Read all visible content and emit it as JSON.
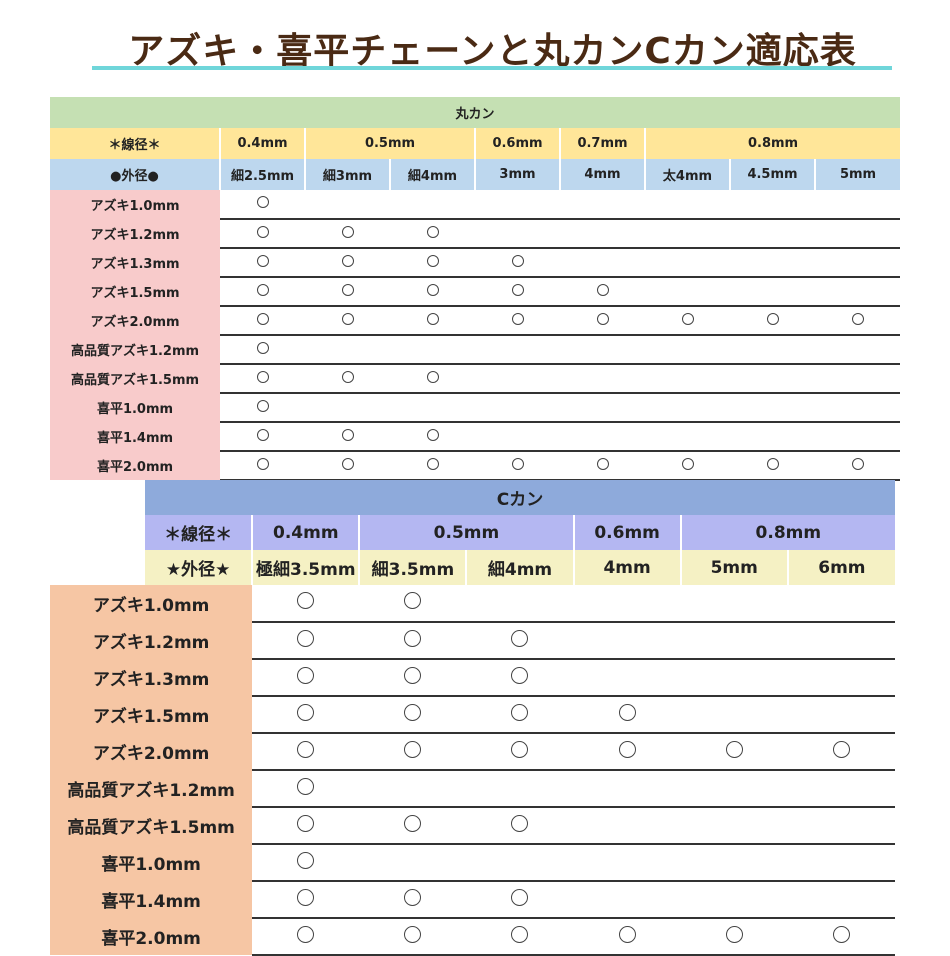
{
  "title": "アズキ・喜平チェーンと丸カンCカン適応表",
  "marukan": {
    "header": "丸カン",
    "wire_label": "＊線径＊",
    "wire": [
      {
        "label": "0.4mm",
        "span": 1
      },
      {
        "label": "0.5mm",
        "span": 2
      },
      {
        "label": "0.6mm",
        "span": 1
      },
      {
        "label": "0.7mm",
        "span": 1
      },
      {
        "label": "0.8mm",
        "span": 3
      }
    ],
    "outer_label": "●外径●",
    "outer": [
      "細2.5mm",
      "細3mm",
      "細4mm",
      "3mm",
      "4mm",
      "太4mm",
      "4.5mm",
      "5mm"
    ],
    "rows": [
      {
        "label": "アズキ1.0mm",
        "marks": [
          1,
          0,
          0,
          0,
          0,
          0,
          0,
          0
        ]
      },
      {
        "label": "アズキ1.2mm",
        "marks": [
          1,
          1,
          1,
          0,
          0,
          0,
          0,
          0
        ]
      },
      {
        "label": "アズキ1.3mm",
        "marks": [
          1,
          1,
          1,
          1,
          0,
          0,
          0,
          0
        ]
      },
      {
        "label": "アズキ1.5mm",
        "marks": [
          1,
          1,
          1,
          1,
          1,
          0,
          0,
          0
        ]
      },
      {
        "label": "アズキ2.0mm",
        "marks": [
          1,
          1,
          1,
          1,
          1,
          1,
          1,
          1
        ]
      },
      {
        "label": "高品質アズキ1.2mm",
        "marks": [
          1,
          0,
          0,
          0,
          0,
          0,
          0,
          0
        ]
      },
      {
        "label": "高品質アズキ1.5mm",
        "marks": [
          1,
          1,
          1,
          0,
          0,
          0,
          0,
          0
        ]
      },
      {
        "label": "喜平1.0mm",
        "marks": [
          1,
          0,
          0,
          0,
          0,
          0,
          0,
          0
        ]
      },
      {
        "label": "喜平1.4mm",
        "marks": [
          1,
          1,
          1,
          0,
          0,
          0,
          0,
          0
        ]
      },
      {
        "label": "喜平2.0mm",
        "marks": [
          1,
          1,
          1,
          1,
          1,
          1,
          1,
          1
        ]
      }
    ],
    "colors": {
      "header": "#c5e0b3",
      "wire": "#ffe699",
      "outer": "#bdd7ee",
      "label": "#f8cbcb"
    }
  },
  "ckan": {
    "header": "Cカン",
    "wire_label": "＊線径＊",
    "wire": [
      {
        "label": "0.4mm",
        "span": 1
      },
      {
        "label": "0.5mm",
        "span": 2
      },
      {
        "label": "0.6mm",
        "span": 1
      },
      {
        "label": "0.8mm",
        "span": 2
      }
    ],
    "outer_label": "★外径★",
    "outer": [
      "極細3.5mm",
      "細3.5mm",
      "細4mm",
      "4mm",
      "5mm",
      "6mm"
    ],
    "rows": [
      {
        "label": "アズキ1.0mm",
        "marks": [
          1,
          1,
          0,
          0,
          0,
          0
        ]
      },
      {
        "label": "アズキ1.2mm",
        "marks": [
          1,
          1,
          1,
          0,
          0,
          0
        ]
      },
      {
        "label": "アズキ1.3mm",
        "marks": [
          1,
          1,
          1,
          0,
          0,
          0
        ]
      },
      {
        "label": "アズキ1.5mm",
        "marks": [
          1,
          1,
          1,
          1,
          0,
          0
        ]
      },
      {
        "label": "アズキ2.0mm",
        "marks": [
          1,
          1,
          1,
          1,
          1,
          1
        ]
      },
      {
        "label": "高品質アズキ1.2mm",
        "marks": [
          1,
          0,
          0,
          0,
          0,
          0
        ]
      },
      {
        "label": "高品質アズキ1.5mm",
        "marks": [
          1,
          1,
          1,
          0,
          0,
          0
        ]
      },
      {
        "label": "喜平1.0mm",
        "marks": [
          1,
          0,
          0,
          0,
          0,
          0
        ]
      },
      {
        "label": "喜平1.4mm",
        "marks": [
          1,
          1,
          1,
          0,
          0,
          0
        ]
      },
      {
        "label": "喜平2.0mm",
        "marks": [
          1,
          1,
          1,
          1,
          1,
          1
        ]
      }
    ],
    "colors": {
      "header": "#8eaadb",
      "wire": "#b4b7f2",
      "outer": "#f5f1c4",
      "label": "#f6c6a4"
    }
  }
}
